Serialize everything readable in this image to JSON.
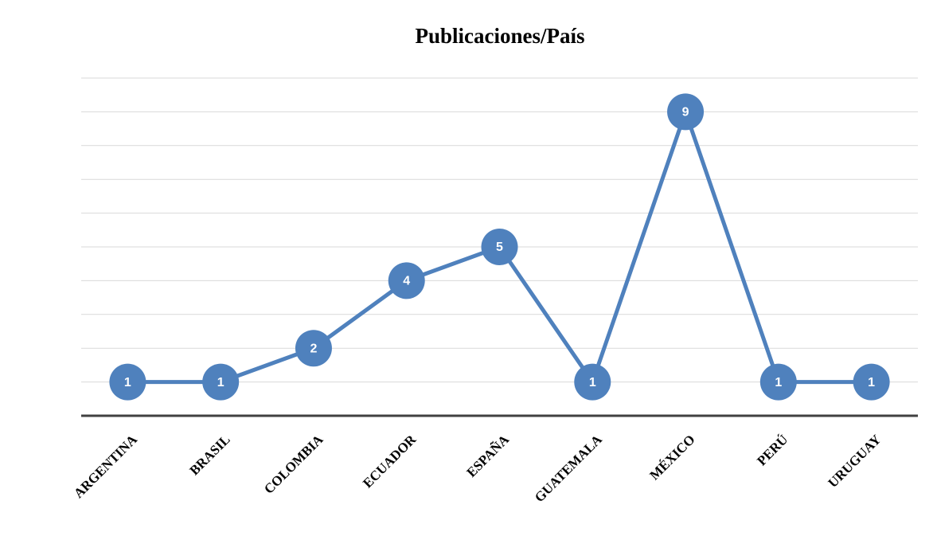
{
  "chart_data": {
    "type": "line",
    "title": "Publicaciones/País",
    "categories": [
      "ARGENTINA",
      "BRASIL",
      "COLOMBIA",
      "ECUADOR",
      "ESPAÑA",
      "GUATEMALA",
      "MÉXICO",
      "PERÚ",
      "URUGUAY"
    ],
    "values": [
      1,
      1,
      2,
      4,
      5,
      1,
      9,
      1,
      1
    ],
    "color": "#4f81bd",
    "ylim": [
      0,
      10
    ],
    "yticks": [
      0,
      1,
      2,
      3,
      4,
      5,
      6,
      7,
      8,
      9,
      10
    ],
    "grid": true
  }
}
